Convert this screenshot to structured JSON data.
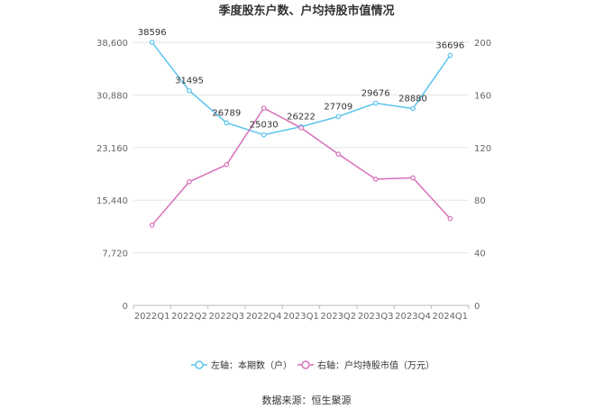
{
  "chart_data": {
    "type": "line",
    "title": "季度股东户数、户均持股市值情况",
    "source_label": "数据来源：恒生聚源",
    "categories": [
      "2022Q1",
      "2022Q2",
      "2022Q3",
      "2022Q4",
      "2023Q1",
      "2023Q2",
      "2023Q3",
      "2023Q4",
      "2024Q1"
    ],
    "left_axis": {
      "min": 0,
      "max": 38600,
      "ticks": [
        0,
        7720,
        15440,
        23160,
        30880,
        38600
      ],
      "tick_labels": [
        "0",
        "7,720",
        "15,440",
        "23,160",
        "30,880",
        "38,600"
      ]
    },
    "right_axis": {
      "min": 0,
      "max": 200,
      "ticks": [
        0,
        40,
        80,
        120,
        160,
        200
      ],
      "tick_labels": [
        "0",
        "40",
        "80",
        "120",
        "160",
        "200"
      ]
    },
    "grid": true,
    "legend_position": "bottom",
    "series": [
      {
        "name": "左轴：本期数（户）",
        "axis": "left",
        "color": "#5bc4ee",
        "show_labels": true,
        "values": [
          38596,
          31495,
          26789,
          25030,
          26222,
          27709,
          29676,
          28880,
          36696
        ]
      },
      {
        "name": "右轴：户均持股市值（万元）",
        "axis": "right",
        "color": "#d86fb8",
        "show_labels": false,
        "values": [
          61,
          94,
          107,
          150,
          135,
          115,
          96,
          97,
          66
        ]
      }
    ]
  }
}
